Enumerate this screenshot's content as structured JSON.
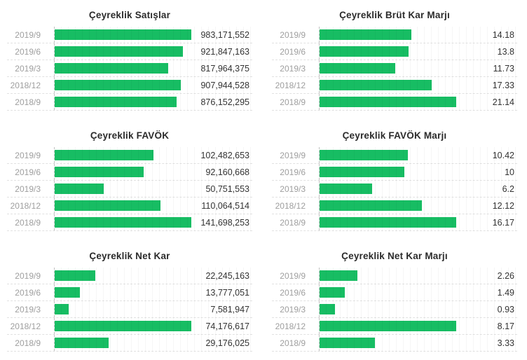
{
  "page": {
    "background": "#ffffff"
  },
  "colors": {
    "bar": "#17bd63",
    "title": "#2b2b2b",
    "category_label": "#9e9e9e",
    "value_label": "#333333",
    "row_dash": "#e1e1e1",
    "axis_dash": "#c9c9c9"
  },
  "chart_data": [
    {
      "id": "satislar",
      "type": "bar",
      "orientation": "horizontal",
      "title": "Çeyreklik Satışlar",
      "categories": [
        "2019/9",
        "2019/6",
        "2019/3",
        "2018/12",
        "2018/9"
      ],
      "values": [
        983171552,
        921847163,
        817964375,
        907944528,
        876152295
      ],
      "value_labels": [
        "983,171,552",
        "921,847,163",
        "817,964,375",
        "907,944,528",
        "876,152,295"
      ],
      "xlim": [
        0,
        983171552
      ],
      "grid": true,
      "legend": false
    },
    {
      "id": "brut-kar-marji",
      "type": "bar",
      "orientation": "horizontal",
      "title": "Çeyreklik Brüt Kar Marjı",
      "categories": [
        "2019/9",
        "2019/6",
        "2019/3",
        "2018/12",
        "2018/9"
      ],
      "values": [
        14.18,
        13.8,
        11.73,
        17.33,
        21.14
      ],
      "value_labels": [
        "14.18",
        "13.8",
        "11.73",
        "17.33",
        "21.14"
      ],
      "xlim": [
        0,
        21.14
      ],
      "grid": true,
      "legend": false
    },
    {
      "id": "favok",
      "type": "bar",
      "orientation": "horizontal",
      "title": "Çeyreklik FAVÖK",
      "categories": [
        "2019/9",
        "2019/6",
        "2019/3",
        "2018/12",
        "2018/9"
      ],
      "values": [
        102482653,
        92160668,
        50751553,
        110064514,
        141698253
      ],
      "value_labels": [
        "102,482,653",
        "92,160,668",
        "50,751,553",
        "110,064,514",
        "141,698,253"
      ],
      "xlim": [
        0,
        141698253
      ],
      "grid": true,
      "legend": false
    },
    {
      "id": "favok-marji",
      "type": "bar",
      "orientation": "horizontal",
      "title": "Çeyreklik FAVÖK Marjı",
      "categories": [
        "2019/9",
        "2019/6",
        "2019/3",
        "2018/12",
        "2018/9"
      ],
      "values": [
        10.42,
        10,
        6.2,
        12.12,
        16.17
      ],
      "value_labels": [
        "10.42",
        "10",
        "6.2",
        "12.12",
        "16.17"
      ],
      "xlim": [
        0,
        16.17
      ],
      "grid": true,
      "legend": false
    },
    {
      "id": "net-kar",
      "type": "bar",
      "orientation": "horizontal",
      "title": "Çeyreklik Net Kar",
      "categories": [
        "2019/9",
        "2019/6",
        "2019/3",
        "2018/12",
        "2018/9"
      ],
      "values": [
        22245163,
        13777051,
        7581947,
        74176617,
        29176025
      ],
      "value_labels": [
        "22,245,163",
        "13,777,051",
        "7,581,947",
        "74,176,617",
        "29,176,025"
      ],
      "xlim": [
        0,
        74176617
      ],
      "grid": true,
      "legend": false
    },
    {
      "id": "net-kar-marji",
      "type": "bar",
      "orientation": "horizontal",
      "title": "Çeyreklik Net Kar Marjı",
      "categories": [
        "2019/9",
        "2019/6",
        "2019/3",
        "2018/12",
        "2018/9"
      ],
      "values": [
        2.26,
        1.49,
        0.93,
        8.17,
        3.33
      ],
      "value_labels": [
        "2.26",
        "1.49",
        "0.93",
        "8.17",
        "3.33"
      ],
      "xlim": [
        0,
        8.17
      ],
      "grid": true,
      "legend": false
    }
  ]
}
